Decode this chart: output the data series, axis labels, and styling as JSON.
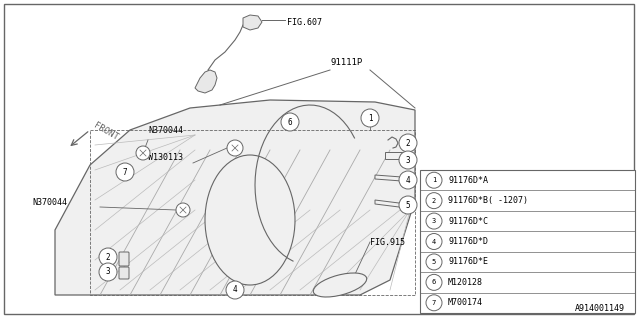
{
  "bg_color": "#ffffff",
  "line_color": "#666666",
  "legend_items": [
    {
      "num": "1",
      "code": "91176D*A"
    },
    {
      "num": "2",
      "code": "91176D*B( -1207)"
    },
    {
      "num": "3",
      "code": "91176D*C"
    },
    {
      "num": "4",
      "code": "91176D*D"
    },
    {
      "num": "5",
      "code": "91176D*E"
    },
    {
      "num": "6",
      "code": "M120128"
    },
    {
      "num": "7",
      "code": "M700174"
    }
  ],
  "footer_text": "A914001149",
  "fig607_text": "FIG.607",
  "fig915_text": "FIG.915",
  "p91111_text": "91111P",
  "n370044_text": "N370044",
  "w130113_text": "W130113",
  "front_text": "FRONT"
}
